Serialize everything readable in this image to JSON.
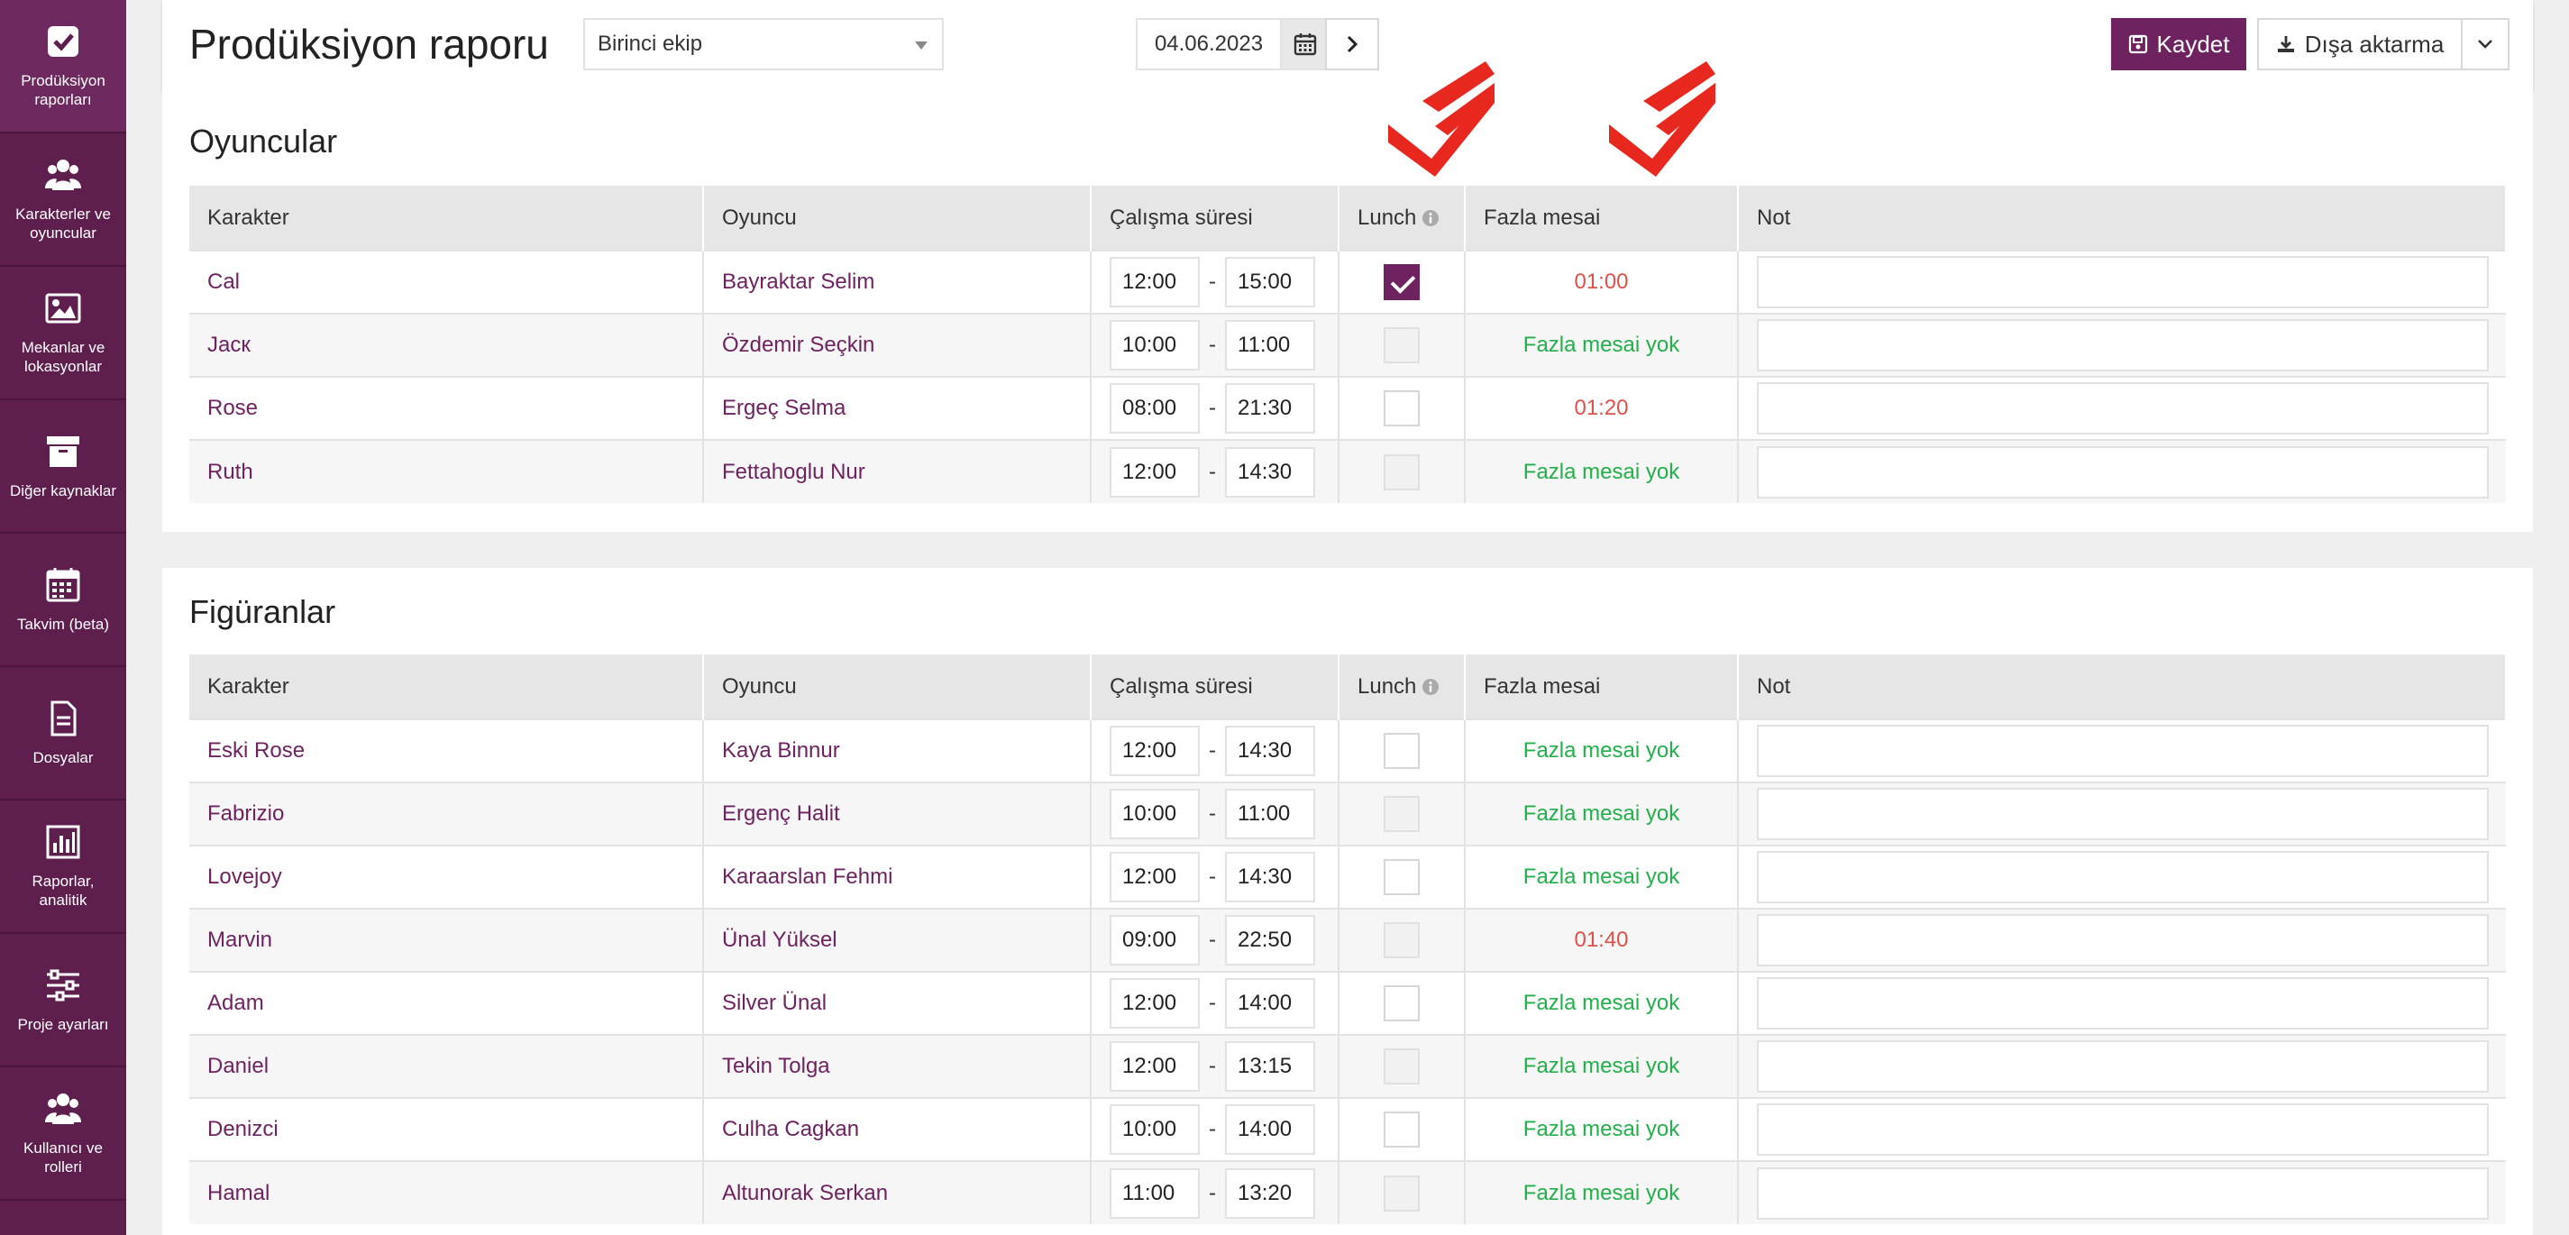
{
  "sidebar": {
    "items": [
      {
        "label": "Prodüksiyon raporları",
        "icon": "check-square-icon",
        "active": true
      },
      {
        "label": "Karakterler ve oyuncular",
        "icon": "users-icon",
        "active": false
      },
      {
        "label": "Mekanlar ve lokasyonlar",
        "icon": "image-icon",
        "active": false
      },
      {
        "label": "Diğer kaynaklar",
        "icon": "archive-icon",
        "active": false
      },
      {
        "label": "Takvim (beta)",
        "icon": "calendar-icon",
        "active": false
      },
      {
        "label": "Dosyalar",
        "icon": "file-icon",
        "active": false
      },
      {
        "label": "Raporlar, analitik",
        "icon": "bar-chart-icon",
        "active": false
      },
      {
        "label": "Proje ayarları",
        "icon": "sliders-icon",
        "active": false
      },
      {
        "label": "Kullanıcı ve rolleri",
        "icon": "users-icon",
        "active": false
      }
    ]
  },
  "header": {
    "title": "Prodüksiyon raporu",
    "team_select": "Birinci ekip",
    "date": "04.06.2023",
    "save_label": "Kaydet",
    "export_label": "Dışa aktarma"
  },
  "columns": {
    "character": "Karakter",
    "actor": "Oyuncu",
    "work_time": "Çalışma süresi",
    "lunch": "Lunch",
    "overtime": "Fazla mesai",
    "note": "Not"
  },
  "actors_section": {
    "title": "Oyuncular",
    "rows": [
      {
        "character": "Cal",
        "actor": "Bayraktar Selim",
        "start": "12:00",
        "end": "15:00",
        "lunch": "checked",
        "overtime": "01:00",
        "ot_status": "red"
      },
      {
        "character": "Jacк",
        "actor": "Özdemir Seçkin",
        "start": "10:00",
        "end": "11:00",
        "lunch": "disabled",
        "overtime": "Fazla mesai yok",
        "ot_status": "green"
      },
      {
        "character": "Rose",
        "actor": "Ergeç Selma",
        "start": "08:00",
        "end": "21:30",
        "lunch": "unchecked",
        "overtime": "01:20",
        "ot_status": "red"
      },
      {
        "character": "Ruth",
        "actor": "Fettahoglu Nur",
        "start": "12:00",
        "end": "14:30",
        "lunch": "disabled",
        "overtime": "Fazla mesai yok",
        "ot_status": "green"
      }
    ]
  },
  "extras_section": {
    "title": "Figüranlar",
    "rows": [
      {
        "character": "Eski Rose",
        "actor": "Kaya Binnur",
        "start": "12:00",
        "end": "14:30",
        "lunch": "unchecked",
        "overtime": "Fazla mesai yok",
        "ot_status": "green"
      },
      {
        "character": "Fabrizio",
        "actor": "Ergenç Halit",
        "start": "10:00",
        "end": "11:00",
        "lunch": "disabled",
        "overtime": "Fazla mesai yok",
        "ot_status": "green"
      },
      {
        "character": "Lovejoy",
        "actor": "Karaarslan Fehmi",
        "start": "12:00",
        "end": "14:30",
        "lunch": "unchecked",
        "overtime": "Fazla mesai yok",
        "ot_status": "green"
      },
      {
        "character": "Marvin",
        "actor": "Ünal Yüksel",
        "start": "09:00",
        "end": "22:50",
        "lunch": "disabled",
        "overtime": "01:40",
        "ot_status": "red"
      },
      {
        "character": "Adam",
        "actor": "Silver Ünal",
        "start": "12:00",
        "end": "14:00",
        "lunch": "unchecked",
        "overtime": "Fazla mesai yok",
        "ot_status": "green"
      },
      {
        "character": "Daniel",
        "actor": "Tekin Tolga",
        "start": "12:00",
        "end": "13:15",
        "lunch": "disabled",
        "overtime": "Fazla mesai yok",
        "ot_status": "green"
      },
      {
        "character": "Denizci",
        "actor": "Culha Cagkan",
        "start": "10:00",
        "end": "14:00",
        "lunch": "unchecked",
        "overtime": "Fazla mesai yok",
        "ot_status": "green"
      },
      {
        "character": "Hamal",
        "actor": "Altunorak Serkan",
        "start": "11:00",
        "end": "13:20",
        "lunch": "disabled",
        "overtime": "Fazla mesai yok",
        "ot_status": "green"
      }
    ]
  },
  "colors": {
    "brand": "#6e2360",
    "sidebar": "#5e1f4f",
    "overtime_red": "#e0504a",
    "overtime_green": "#22b04a",
    "annotation_red": "#e8281e"
  }
}
